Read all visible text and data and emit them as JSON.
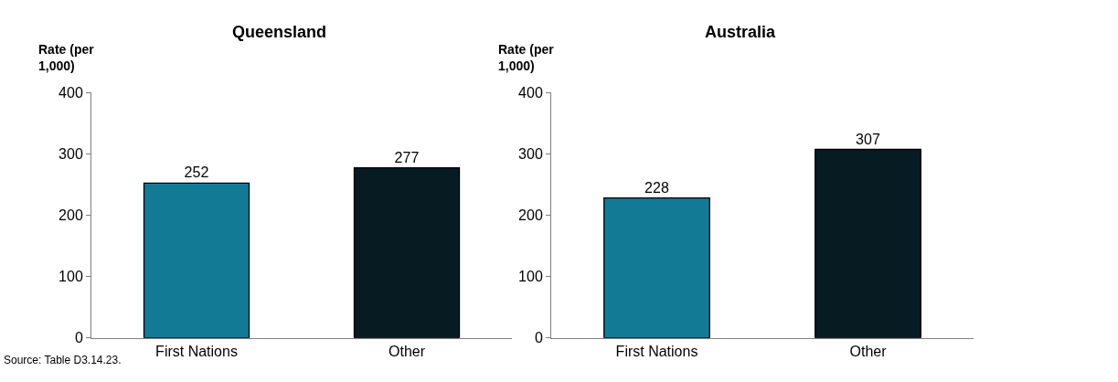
{
  "chart_data": [
    {
      "type": "bar",
      "title": "Queensland",
      "ylabel": "Rate (per\n1,000)",
      "categories": [
        "First Nations",
        "Other"
      ],
      "values": [
        252,
        277
      ],
      "colors": [
        "#137a96",
        "#071b22"
      ],
      "ylim": [
        0,
        400
      ],
      "yticks": [
        0,
        100,
        200,
        300,
        400
      ],
      "data_labels": true,
      "annotations": [
        "Source: Table D3.14.23."
      ]
    },
    {
      "type": "bar",
      "title": "Australia",
      "ylabel": "Rate (per\n1,000)",
      "categories": [
        "First Nations",
        "Other"
      ],
      "values": [
        228,
        307
      ],
      "colors": [
        "#137a96",
        "#071b22"
      ],
      "ylim": [
        0,
        400
      ],
      "yticks": [
        0,
        100,
        200,
        300,
        400
      ],
      "data_labels": true
    }
  ]
}
